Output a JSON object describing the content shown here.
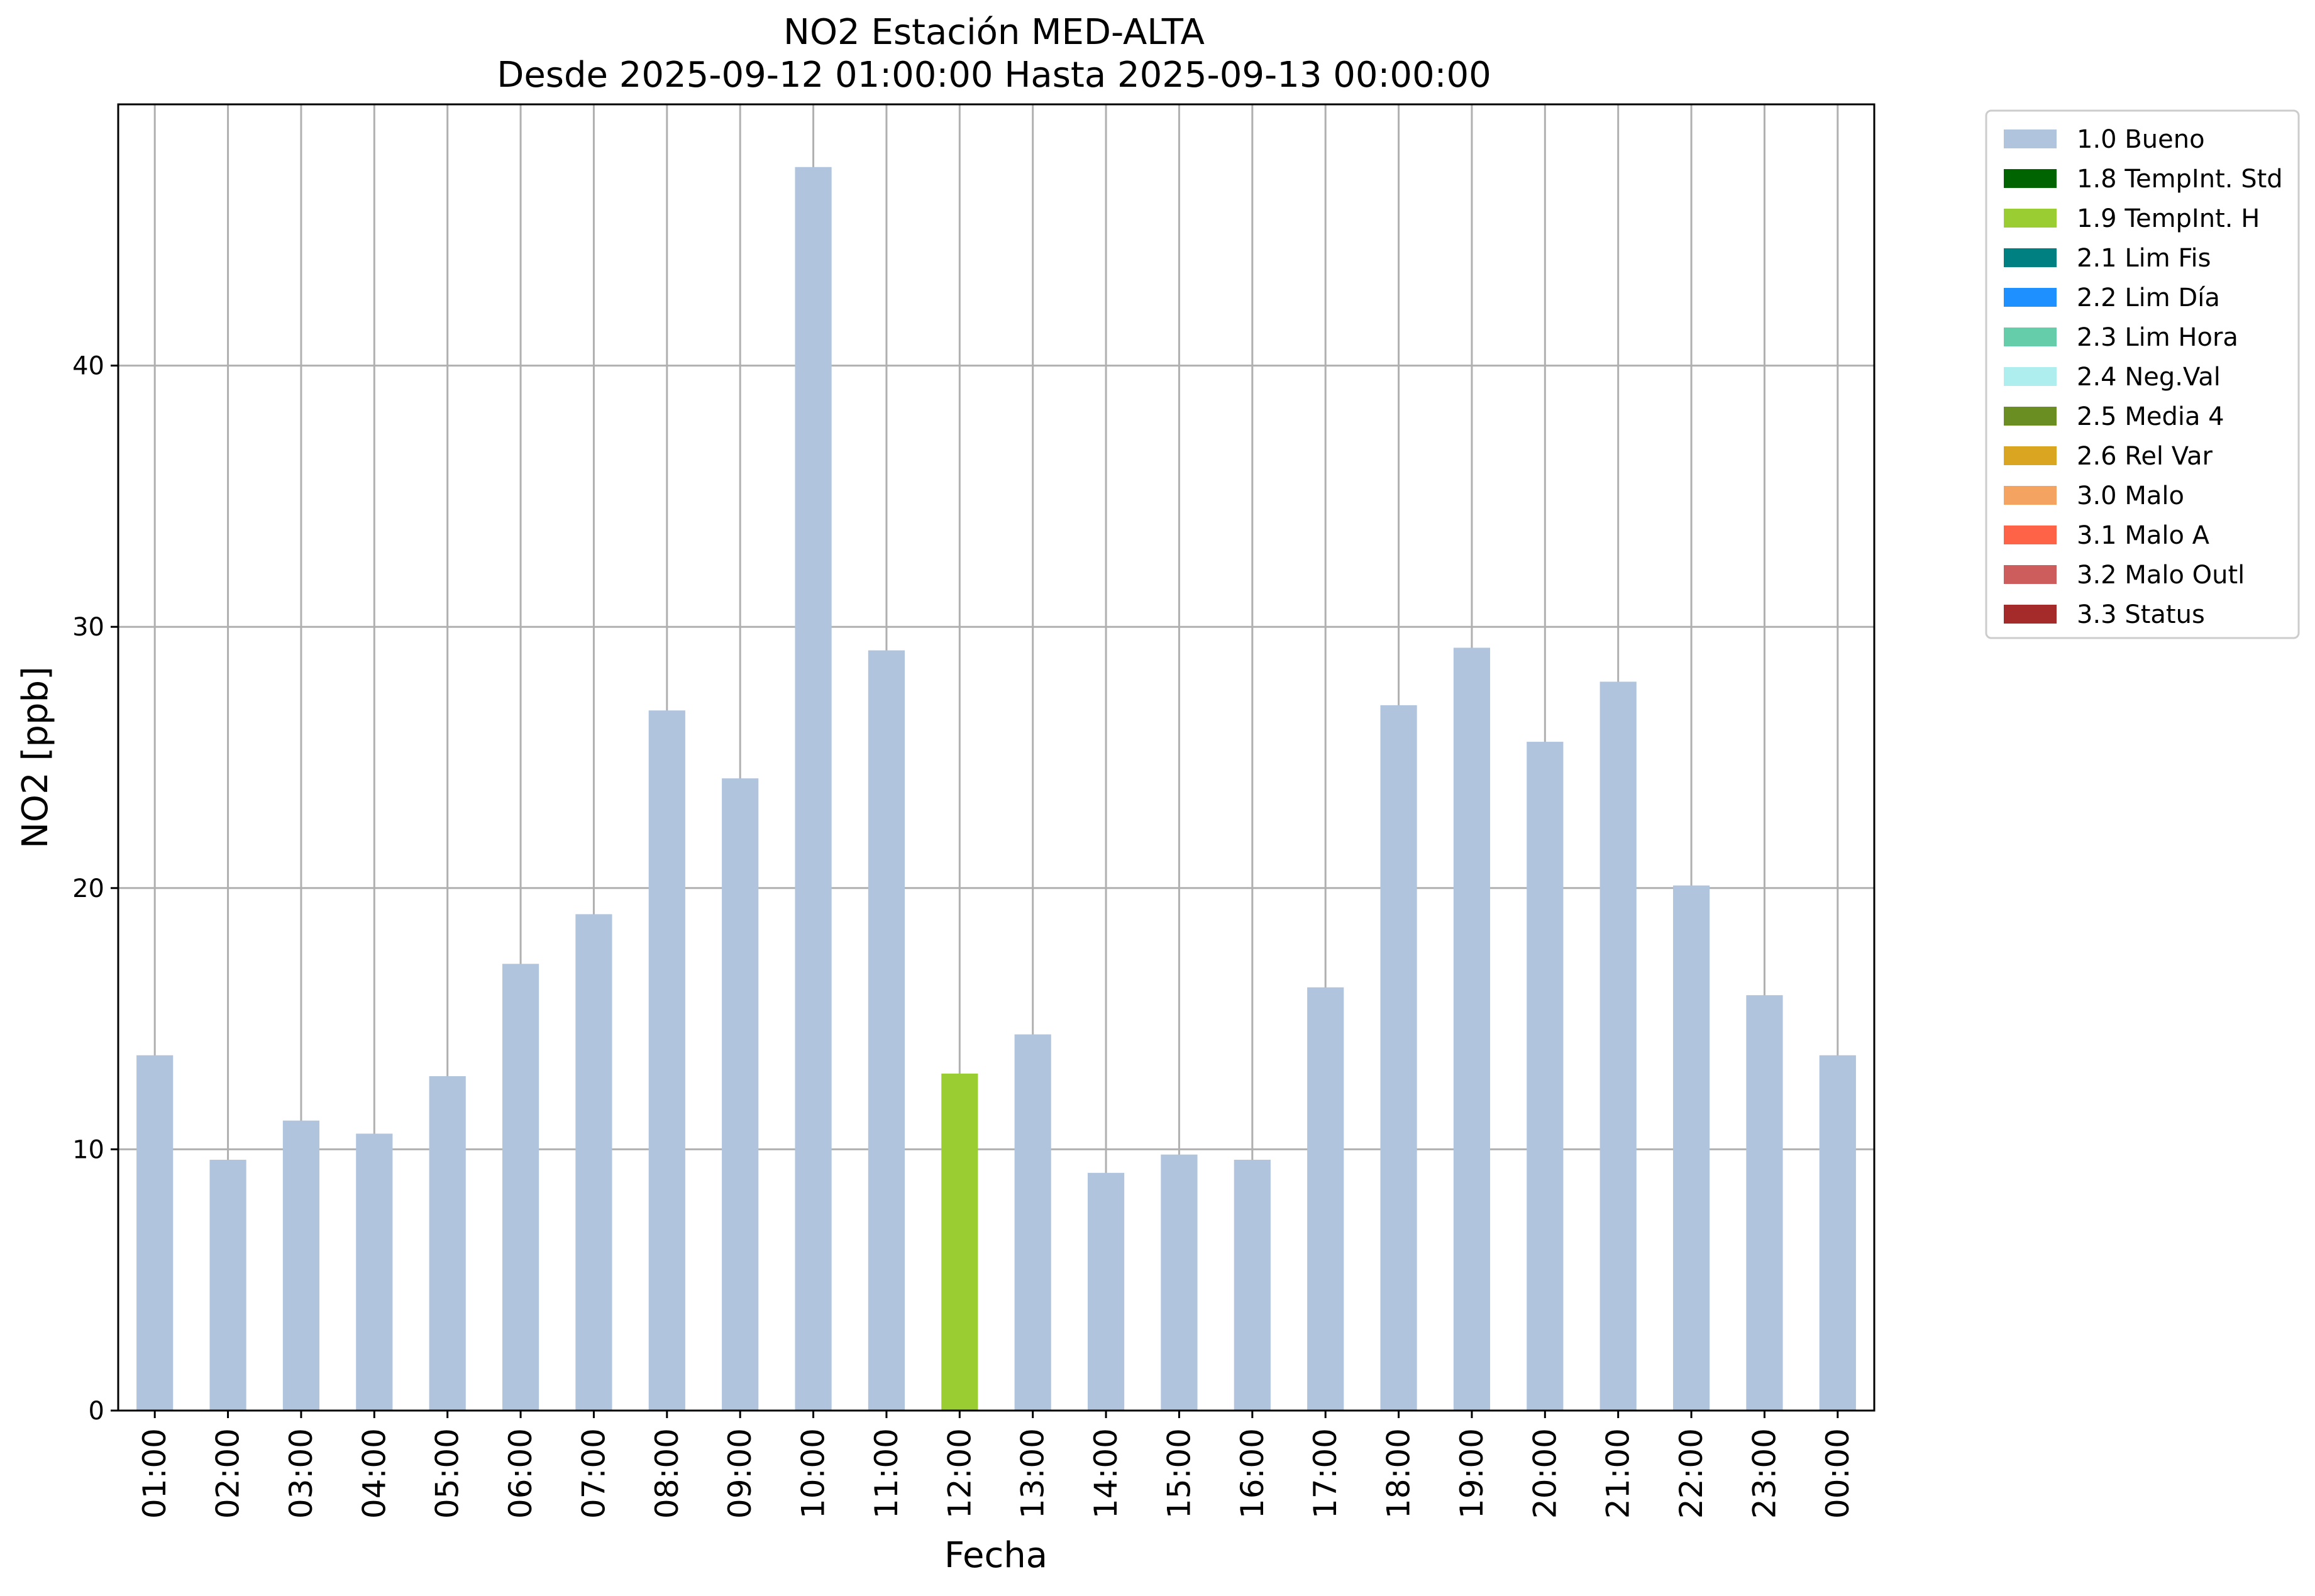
{
  "chart_data": {
    "type": "bar",
    "title": "NO2 Estación MED-ALTA",
    "subtitle": "Desde 2025-09-12 01:00:00 Hasta 2025-09-13 00:00:00",
    "xlabel": "Fecha",
    "ylabel": "NO2 [ppb]",
    "ylim": [
      0,
      50
    ],
    "yticks": [
      0,
      10,
      20,
      30,
      40
    ],
    "grid": true,
    "legend_position": "outside-top-right",
    "categories": [
      "01:00",
      "02:00",
      "03:00",
      "04:00",
      "05:00",
      "06:00",
      "07:00",
      "08:00",
      "09:00",
      "10:00",
      "11:00",
      "12:00",
      "13:00",
      "14:00",
      "15:00",
      "16:00",
      "17:00",
      "18:00",
      "19:00",
      "20:00",
      "21:00",
      "22:00",
      "23:00",
      "00:00"
    ],
    "values": [
      13.6,
      9.6,
      11.1,
      10.6,
      12.8,
      17.1,
      19.0,
      26.8,
      24.2,
      47.6,
      29.1,
      12.9,
      14.4,
      9.1,
      9.8,
      9.6,
      16.2,
      27.0,
      29.2,
      25.6,
      27.9,
      20.1,
      15.9,
      13.6
    ],
    "flags": [
      "1.0 Bueno",
      "1.0 Bueno",
      "1.0 Bueno",
      "1.0 Bueno",
      "1.0 Bueno",
      "1.0 Bueno",
      "1.0 Bueno",
      "1.0 Bueno",
      "1.0 Bueno",
      "1.0 Bueno",
      "1.0 Bueno",
      "1.9 TempInt. H",
      "1.0 Bueno",
      "1.0 Bueno",
      "1.0 Bueno",
      "1.0 Bueno",
      "1.0 Bueno",
      "1.0 Bueno",
      "1.0 Bueno",
      "1.0 Bueno",
      "1.0 Bueno",
      "1.0 Bueno",
      "1.0 Bueno",
      "1.0 Bueno"
    ],
    "legend": [
      {
        "label": "1.0 Bueno",
        "color": "#b0c4de"
      },
      {
        "label": "1.8 TempInt. Std",
        "color": "#006400"
      },
      {
        "label": "1.9 TempInt. H",
        "color": "#9acd32"
      },
      {
        "label": "2.1 Lim Fis",
        "color": "#008080"
      },
      {
        "label": "2.2 Lim Día",
        "color": "#1e90ff"
      },
      {
        "label": "2.3 Lim Hora",
        "color": "#66cdaa"
      },
      {
        "label": "2.4 Neg.Val",
        "color": "#afeeee"
      },
      {
        "label": "2.5 Media 4",
        "color": "#6b8e23"
      },
      {
        "label": "2.6 Rel Var",
        "color": "#daa520"
      },
      {
        "label": "3.0 Malo",
        "color": "#f4a460"
      },
      {
        "label": "3.1 Malo A",
        "color": "#ff6347"
      },
      {
        "label": "3.2 Malo Outl",
        "color": "#cd5c5c"
      },
      {
        "label": "3.3 Status",
        "color": "#a52a2a"
      }
    ]
  }
}
